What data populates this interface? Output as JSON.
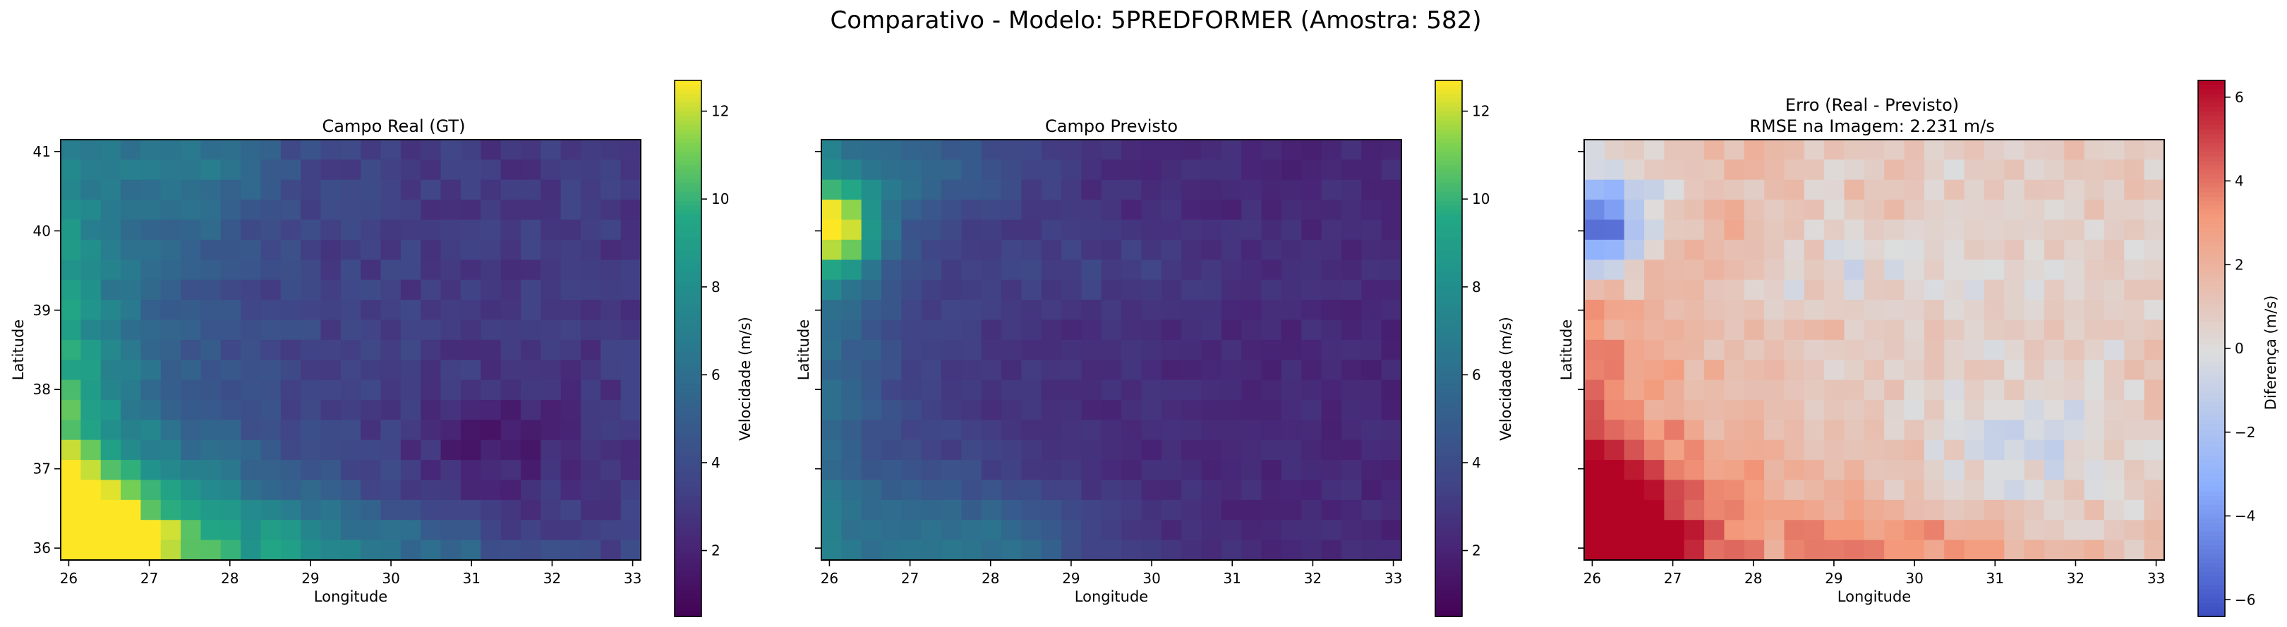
{
  "figure": {
    "title": "Comparativo - Modelo: 5PREDFORMER (Amostra: 582)"
  },
  "chart_data": [
    {
      "type": "heatmap",
      "title": "Campo Real (GT)",
      "xlabel": "Longitude",
      "ylabel": "Latitude",
      "x_ticks": [
        "26",
        "27",
        "28",
        "29",
        "30",
        "31",
        "32",
        "33"
      ],
      "y_ticks": [
        "41",
        "40",
        "39",
        "38",
        "37",
        "36"
      ],
      "colorbar": {
        "label": "Velocidade (m/s)",
        "colormap": "viridis",
        "range": [
          0.5,
          12.7
        ],
        "ticks": [
          "2",
          "4",
          "6",
          "8",
          "10",
          "12"
        ]
      }
    },
    {
      "type": "heatmap",
      "title": "Campo Previsto",
      "xlabel": "Longitude",
      "ylabel": "Latitude",
      "x_ticks": [
        "26",
        "27",
        "28",
        "29",
        "30",
        "31",
        "32",
        "33"
      ],
      "colorbar": {
        "label": "Velocidade (m/s)",
        "colormap": "viridis",
        "range": [
          0.5,
          12.7
        ],
        "ticks": [
          "2",
          "4",
          "6",
          "8",
          "10",
          "12"
        ]
      }
    },
    {
      "type": "heatmap",
      "title": "Erro (Real - Previsto)",
      "subtitle": "RMSE na Imagem: 2.231 m/s",
      "xlabel": "Longitude",
      "ylabel": "Latitude",
      "x_ticks": [
        "26",
        "27",
        "28",
        "29",
        "30",
        "31",
        "32",
        "33"
      ],
      "colorbar": {
        "label": "Diferença (m/s)",
        "colormap": "coolwarm",
        "range": [
          -6.4,
          6.4
        ],
        "ticks": [
          "−6",
          "−4",
          "−2",
          "0",
          "2",
          "4",
          "6"
        ]
      }
    }
  ]
}
